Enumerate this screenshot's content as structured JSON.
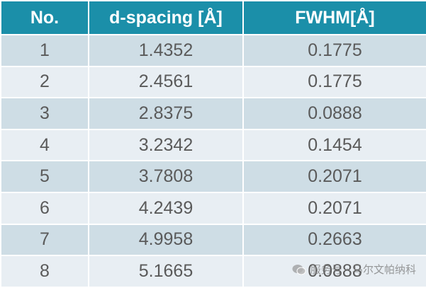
{
  "table": {
    "header": [
      "No.",
      "d-spacing [Å]",
      "FWHM[Å]"
    ],
    "rows": [
      [
        "1",
        "1.4352",
        "0.1775"
      ],
      [
        "2",
        "2.4561",
        "0.1775"
      ],
      [
        "3",
        "2.8375",
        "0.0888"
      ],
      [
        "4",
        "3.2342",
        "0.1454"
      ],
      [
        "5",
        "3.7808",
        "0.2071"
      ],
      [
        "6",
        "4.2439",
        "0.2071"
      ],
      [
        "7",
        "4.9958",
        "0.2663"
      ],
      [
        "8",
        "5.1665",
        "0.0888"
      ]
    ]
  },
  "watermark": "服务号 · 马尔文帕纳科"
}
